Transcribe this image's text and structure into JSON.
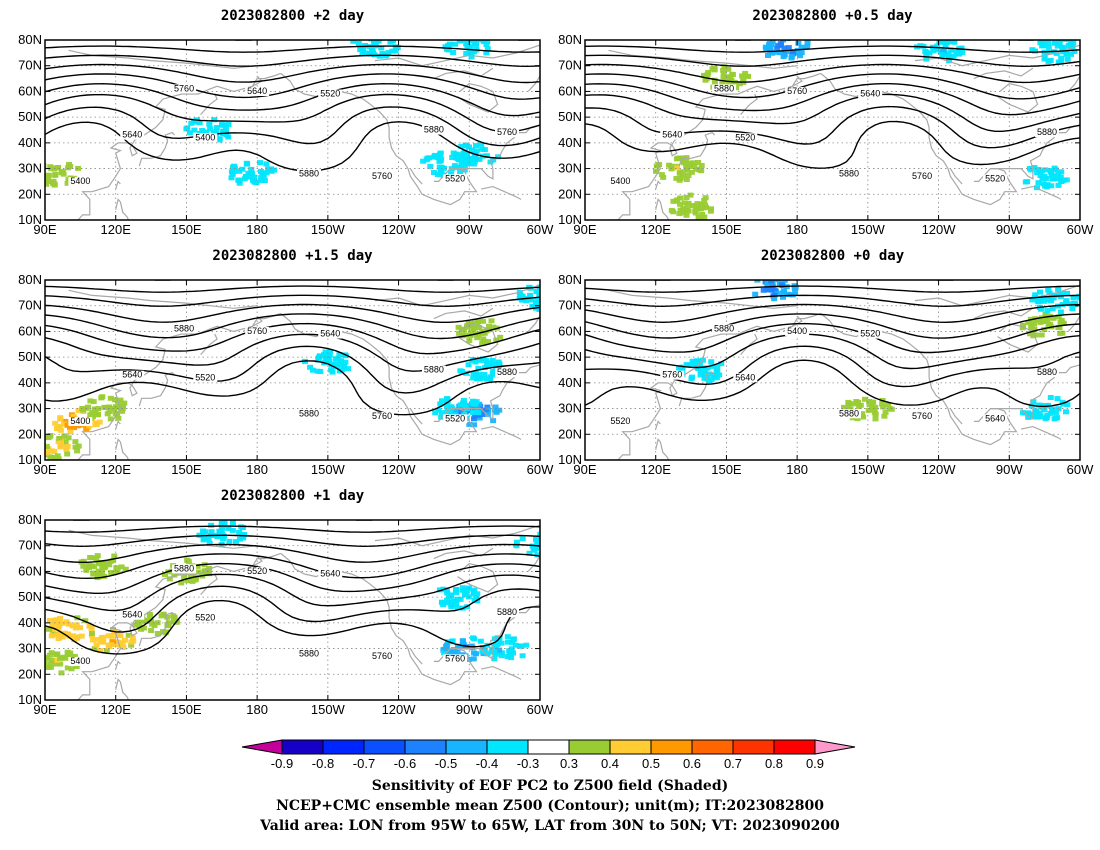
{
  "panels": [
    {
      "id": "p2",
      "title": "2023082800  +2 day",
      "contour_labels": [
        "5400",
        "5400",
        "5520",
        "5520",
        "5640",
        "5640",
        "5760",
        "5760",
        "5760",
        "5880",
        "5880"
      ],
      "positive_blobs": [
        {
          "lon": 95,
          "lat": 28,
          "amp": 0.35
        }
      ],
      "negative_blobs": [
        {
          "lon": 160,
          "lat": 45,
          "amp": 0.35
        },
        {
          "lon": 178,
          "lat": 28,
          "amp": 0.35
        },
        {
          "lon": -88,
          "lat": 35,
          "amp": 0.4
        },
        {
          "lon": -100,
          "lat": 32,
          "amp": 0.35
        },
        {
          "lon": -130,
          "lat": 78,
          "amp": 0.35
        },
        {
          "lon": -90,
          "lat": 78,
          "amp": 0.35
        }
      ]
    },
    {
      "id": "p05",
      "title": "2023082800  +0.5 day",
      "contour_labels": [
        "5400",
        "5520",
        "5640",
        "5520",
        "5640",
        "5760",
        "5760",
        "5880",
        "5880",
        "5880"
      ],
      "positive_blobs": [
        {
          "lon": 130,
          "lat": 30,
          "amp": 0.4
        },
        {
          "lon": 150,
          "lat": 65,
          "amp": 0.35
        },
        {
          "lon": 135,
          "lat": 15,
          "amp": 0.35
        }
      ],
      "negative_blobs": [
        {
          "lon": 175,
          "lat": 77,
          "amp": 0.55
        },
        {
          "lon": -120,
          "lat": 76,
          "amp": 0.4
        },
        {
          "lon": -70,
          "lat": 76,
          "amp": 0.35
        },
        {
          "lon": -75,
          "lat": 27,
          "amp": 0.35
        }
      ]
    },
    {
      "id": "p15",
      "title": "2023082800  +1.5 day",
      "contour_labels": [
        "5400",
        "5520",
        "5640",
        "5520",
        "5640",
        "5760",
        "5760",
        "5880",
        "5880",
        "5880",
        "5880"
      ],
      "positive_blobs": [
        {
          "lon": 103,
          "lat": 25,
          "amp": 0.55
        },
        {
          "lon": 95,
          "lat": 15,
          "amp": 0.45
        },
        {
          "lon": 115,
          "lat": 30,
          "amp": 0.4
        },
        {
          "lon": -85,
          "lat": 60,
          "amp": 0.35
        }
      ],
      "negative_blobs": [
        {
          "lon": -87,
          "lat": 28,
          "amp": 0.55
        },
        {
          "lon": -95,
          "lat": 30,
          "amp": 0.4
        },
        {
          "lon": -150,
          "lat": 48,
          "amp": 0.35
        },
        {
          "lon": -85,
          "lat": 45,
          "amp": 0.35
        },
        {
          "lon": -60,
          "lat": 73,
          "amp": 0.35
        }
      ]
    },
    {
      "id": "p0",
      "title": "2023082800  +0 day",
      "contour_labels": [
        "5520",
        "5640",
        "5520",
        "5640",
        "5760",
        "5400",
        "5760",
        "5880",
        "5880",
        "5880"
      ],
      "positive_blobs": [
        {
          "lon": -150,
          "lat": 30,
          "amp": 0.35
        },
        {
          "lon": -75,
          "lat": 62,
          "amp": 0.35
        }
      ],
      "negative_blobs": [
        {
          "lon": 170,
          "lat": 77,
          "amp": 0.55
        },
        {
          "lon": -70,
          "lat": 72,
          "amp": 0.4
        },
        {
          "lon": 140,
          "lat": 45,
          "amp": 0.35
        },
        {
          "lon": -75,
          "lat": 30,
          "amp": 0.35
        }
      ]
    },
    {
      "id": "p1",
      "title": "2023082800  +1 day",
      "contour_labels": [
        "5400",
        "5520",
        "5640",
        "5760",
        "5640",
        "5520",
        "5760",
        "5880",
        "5880",
        "5880"
      ],
      "positive_blobs": [
        {
          "lon": 100,
          "lat": 38,
          "amp": 0.5
        },
        {
          "lon": 118,
          "lat": 33,
          "amp": 0.5
        },
        {
          "lon": 95,
          "lat": 25,
          "amp": 0.4
        },
        {
          "lon": 138,
          "lat": 40,
          "amp": 0.4
        },
        {
          "lon": 150,
          "lat": 60,
          "amp": 0.35
        },
        {
          "lon": 115,
          "lat": 62,
          "amp": 0.35
        }
      ],
      "negative_blobs": [
        {
          "lon": -92,
          "lat": 30,
          "amp": 0.5
        },
        {
          "lon": -75,
          "lat": 30,
          "amp": 0.4
        },
        {
          "lon": 165,
          "lat": 75,
          "amp": 0.4
        },
        {
          "lon": -95,
          "lat": 50,
          "amp": 0.35
        },
        {
          "lon": -60,
          "lat": 70,
          "amp": 0.35
        }
      ]
    }
  ],
  "lat_ticks": [
    "10N",
    "20N",
    "30N",
    "40N",
    "50N",
    "60N",
    "70N",
    "80N"
  ],
  "lon_ticks": [
    "90E",
    "120E",
    "150E",
    "180",
    "150W",
    "120W",
    "90W",
    "60W"
  ],
  "colorbar": {
    "labels": [
      "-0.9",
      "-0.8",
      "-0.7",
      "-0.6",
      "-0.5",
      "-0.4",
      "-0.3",
      "0.3",
      "0.4",
      "0.5",
      "0.6",
      "0.7",
      "0.8",
      "0.9"
    ],
    "colors": [
      "#c4009a",
      "#1600c8",
      "#0026ff",
      "#0a50ff",
      "#1e82ff",
      "#18b4ff",
      "#00e6ff",
      "#ffffff",
      "#99cc33",
      "#ffcc33",
      "#ff9900",
      "#ff6600",
      "#ff3300",
      "#ff0000",
      "#ff99cc"
    ]
  },
  "captions": [
    "Sensitivity of EOF PC2 to Z500 field (Shaded)",
    "NCEP+CMC ensemble mean Z500 (Contour); unit(m); IT:2023082800",
    "Valid area: LON from 95W to 65W, LAT from 30N to 50N; VT: 2023090200"
  ]
}
